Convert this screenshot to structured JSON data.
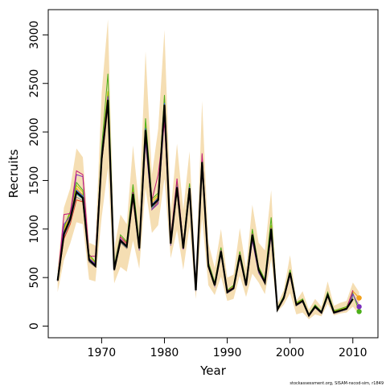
{
  "chart_data": {
    "type": "line",
    "title": "",
    "xlabel": "Year",
    "ylabel": "Recruits",
    "credit": "stockassessment.org, SISAM-nscod-sim, r1849",
    "xlim": [
      1961.5,
      2014
    ],
    "ylim": [
      -120,
      3260
    ],
    "xticks": [
      1970,
      1980,
      1990,
      2000,
      2010
    ],
    "yticks": [
      0,
      500,
      1000,
      1500,
      2000,
      2500,
      3000
    ],
    "years": [
      1963,
      1964,
      1965,
      1966,
      1967,
      1968,
      1969,
      1970,
      1971,
      1972,
      1973,
      1974,
      1975,
      1976,
      1977,
      1978,
      1979,
      1980,
      1981,
      1982,
      1983,
      1984,
      1985,
      1986,
      1987,
      1988,
      1989,
      1990,
      1991,
      1992,
      1993,
      1994,
      1995,
      1996,
      1997,
      1998,
      1999,
      2000,
      2001,
      2002,
      2003,
      2004,
      2005,
      2006,
      2007,
      2008,
      2009,
      2010,
      2011
    ],
    "band_lower": [
      350,
      680,
      850,
      1070,
      1050,
      480,
      460,
      1120,
      1630,
      440,
      610,
      560,
      880,
      590,
      1420,
      960,
      1040,
      1520,
      700,
      990,
      580,
      1030,
      280,
      1110,
      420,
      320,
      510,
      260,
      280,
      520,
      300,
      540,
      450,
      330,
      690,
      150,
      220,
      340,
      120,
      140,
      70,
      120,
      100,
      230,
      110,
      130,
      140,
      200,
      120
    ],
    "band_upper": [
      600,
      1220,
      1420,
      1830,
      1740,
      860,
      830,
      2400,
      3160,
      800,
      1150,
      1050,
      1860,
      1220,
      2830,
      1560,
      2030,
      3050,
      1180,
      1880,
      1200,
      1800,
      490,
      2320,
      860,
      600,
      1000,
      500,
      530,
      1010,
      590,
      1250,
      860,
      780,
      1400,
      230,
      370,
      730,
      260,
      360,
      170,
      280,
      200,
      460,
      210,
      240,
      260,
      450,
      350
    ],
    "point_estimate": {
      "name": "Estimate",
      "color": "#000000",
      "values": [
        470,
        950,
        1100,
        1380,
        1320,
        680,
        620,
        1720,
        2330,
        580,
        880,
        820,
        1360,
        800,
        2020,
        1240,
        1300,
        2280,
        850,
        1430,
        800,
        1420,
        370,
        1690,
        620,
        420,
        770,
        350,
        390,
        730,
        420,
        940,
        580,
        450,
        1000,
        170,
        290,
        550,
        220,
        260,
        110,
        200,
        140,
        320,
        140,
        160,
        180,
        280,
        null
      ]
    },
    "series": [
      {
        "color": "#e23b1f",
        "values": [
          460,
          900,
          1050,
          1300,
          1280,
          660,
          610,
          1680,
          2250,
          570,
          860,
          800,
          1300,
          790,
          1960,
          1200,
          1280,
          2200,
          840,
          1390,
          790,
          1380,
          360,
          1640,
          610,
          410,
          750,
          340,
          380,
          710,
          410,
          900,
          560,
          440,
          960,
          170,
          280,
          530,
          210,
          250,
          100,
          190,
          130,
          310,
          130,
          150,
          170,
          350,
          null
        ]
      },
      {
        "color": "#f2a01a",
        "values": [
          480,
          980,
          1130,
          1420,
          1350,
          700,
          640,
          1760,
          2380,
          600,
          900,
          840,
          1400,
          820,
          2060,
          1270,
          1330,
          2320,
          870,
          1460,
          820,
          1440,
          380,
          1720,
          640,
          430,
          790,
          360,
          400,
          750,
          430,
          960,
          590,
          460,
          1020,
          180,
          300,
          560,
          230,
          270,
          110,
          210,
          140,
          330,
          150,
          170,
          190,
          360,
          290
        ]
      },
      {
        "color": "#c8c800",
        "values": [
          490,
          1000,
          1160,
          1450,
          1380,
          720,
          650,
          1800,
          2420,
          610,
          920,
          860,
          1430,
          840,
          2100,
          1290,
          1350,
          2350,
          880,
          1480,
          830,
          1460,
          380,
          1740,
          650,
          440,
          800,
          360,
          410,
          760,
          440,
          980,
          600,
          470,
          1040,
          180,
          300,
          570,
          230,
          270,
          110,
          210,
          140,
          340,
          150,
          170,
          190,
          300,
          null
        ]
      },
      {
        "color": "#4caf1a",
        "values": [
          500,
          1020,
          1180,
          1480,
          1400,
          740,
          660,
          1840,
          2600,
          620,
          940,
          870,
          1460,
          850,
          2140,
          1310,
          1370,
          2380,
          890,
          1500,
          840,
          1470,
          390,
          1760,
          660,
          450,
          810,
          370,
          420,
          770,
          450,
          1000,
          610,
          480,
          1120,
          180,
          310,
          580,
          240,
          280,
          120,
          220,
          150,
          350,
          160,
          180,
          200,
          340,
          150
        ]
      },
      {
        "color": "#1fb5c9",
        "values": [
          470,
          940,
          1090,
          1360,
          1310,
          670,
          620,
          1700,
          2300,
          580,
          870,
          810,
          1340,
          800,
          2000,
          1220,
          1300,
          2260,
          850,
          1420,
          800,
          1400,
          370,
          1680,
          620,
          420,
          760,
          350,
          390,
          720,
          420,
          930,
          570,
          450,
          990,
          170,
          290,
          540,
          220,
          260,
          110,
          200,
          140,
          320,
          140,
          160,
          180,
          300,
          null
        ]
      },
      {
        "color": "#2b5fd9",
        "values": [
          480,
          960,
          1120,
          1400,
          1340,
          690,
          630,
          1740,
          2350,
          590,
          890,
          830,
          1380,
          810,
          2040,
          1250,
          1320,
          2300,
          860,
          1440,
          810,
          1430,
          370,
          1700,
          630,
          430,
          780,
          350,
          400,
          740,
          430,
          950,
          580,
          460,
          1010,
          170,
          290,
          550,
          220,
          260,
          110,
          200,
          140,
          330,
          140,
          160,
          180,
          320,
          null
        ]
      },
      {
        "color": "#7b2fbe",
        "values": [
          470,
          1050,
          1130,
          1560,
          1540,
          700,
          640,
          1780,
          2370,
          590,
          900,
          820,
          1320,
          780,
          1900,
          1200,
          1260,
          2150,
          830,
          1400,
          790,
          1380,
          360,
          1620,
          610,
          410,
          740,
          340,
          380,
          700,
          410,
          880,
          550,
          440,
          940,
          170,
          280,
          520,
          210,
          250,
          100,
          190,
          130,
          310,
          130,
          150,
          170,
          330,
          200
        ]
      },
      {
        "color": "#c2187a",
        "values": [
          470,
          1150,
          1160,
          1600,
          1560,
          720,
          720,
          1760,
          2300,
          600,
          920,
          850,
          1380,
          820,
          2000,
          1300,
          1560,
          2100,
          900,
          1520,
          840,
          1420,
          380,
          1780,
          640,
          430,
          780,
          360,
          400,
          740,
          430,
          950,
          580,
          460,
          1010,
          170,
          290,
          550,
          220,
          260,
          110,
          200,
          140,
          330,
          140,
          160,
          180,
          370,
          null
        ]
      },
      {
        "color": "#8d8d8d",
        "values": [
          460,
          920,
          1070,
          1330,
          1290,
          660,
          610,
          1690,
          2270,
          570,
          860,
          800,
          1320,
          790,
          1980,
          1210,
          1290,
          2240,
          840,
          1410,
          800,
          1390,
          360,
          1660,
          610,
          410,
          750,
          340,
          380,
          710,
          410,
          910,
          560,
          440,
          970,
          170,
          280,
          530,
          210,
          250,
          100,
          190,
          130,
          310,
          130,
          150,
          170,
          310,
          null
        ]
      }
    ]
  }
}
